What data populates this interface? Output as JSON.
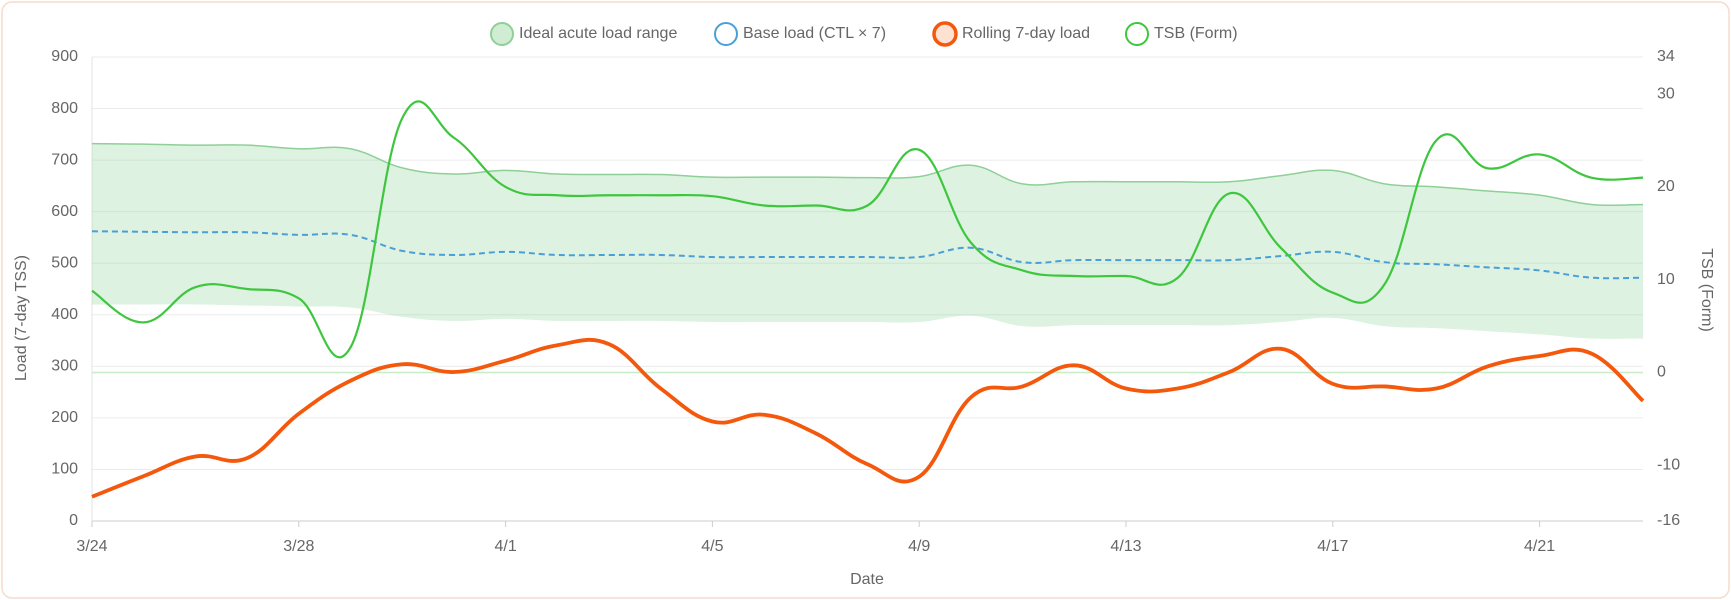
{
  "chart_data": {
    "type": "line",
    "x_label": "Date",
    "y_label": "Load (7-day TSS)",
    "y2_label": "TSB (Form)",
    "categories": [
      "3/24",
      null,
      null,
      null,
      "3/28",
      null,
      null,
      null,
      "4/1",
      null,
      null,
      null,
      "4/5",
      null,
      null,
      null,
      "4/9",
      null,
      null,
      null,
      "4/13",
      null,
      null,
      null,
      "4/17",
      null,
      null,
      null,
      "4/21",
      null,
      null
    ],
    "series": [
      {
        "name": "Ideal acute load range",
        "type": "range",
        "color": "#8fcf98",
        "upper": [
          732,
          731,
          729,
          729,
          722,
          722,
          685,
          673,
          680,
          673,
          672,
          672,
          667,
          667,
          667,
          666,
          668,
          690,
          654,
          658,
          658,
          658,
          658,
          670,
          680,
          654,
          648,
          640,
          632,
          614,
          614
        ],
        "lower": [
          420,
          420,
          420,
          418,
          416,
          414,
          396,
          388,
          392,
          388,
          388,
          388,
          386,
          386,
          386,
          386,
          386,
          398,
          378,
          380,
          380,
          380,
          380,
          386,
          394,
          378,
          374,
          368,
          362,
          354,
          354
        ]
      },
      {
        "name": "Base load (CTL × 7)",
        "type": "dashed",
        "color": "#4a9fd8",
        "values": [
          562,
          561,
          560,
          560,
          555,
          555,
          524,
          516,
          522,
          516,
          516,
          516,
          512,
          512,
          512,
          512,
          512,
          530,
          502,
          506,
          506,
          506,
          506,
          514,
          522,
          502,
          498,
          492,
          486,
          472,
          472
        ]
      },
      {
        "name": "Rolling 7-day load",
        "type": "line",
        "color": "#f4580c",
        "values": [
          47,
          87,
          125,
          122,
          208,
          272,
          304,
          289,
          311,
          341,
          343,
          257,
          193,
          206,
          170,
          110,
          86,
          240,
          261,
          302,
          257,
          257,
          289,
          334,
          266,
          261,
          257,
          300,
          320,
          325,
          233
        ]
      },
      {
        "name": "TSB (Form)",
        "type": "line",
        "color": "#3ec63e",
        "axis": "y2",
        "values": [
          8.8,
          5.4,
          9.2,
          9,
          8,
          2.7,
          27.4,
          25.3,
          20,
          19.1,
          19.1,
          19.1,
          19,
          18,
          18,
          18,
          24,
          14,
          11,
          10.4,
          10.4,
          10.2,
          19.3,
          13.4,
          8.6,
          9.5,
          25,
          22,
          23.5,
          21,
          21
        ]
      }
    ],
    "ylim": [
      0,
      900
    ],
    "yticks": [
      0,
      100,
      200,
      300,
      400,
      500,
      600,
      700,
      800,
      900
    ],
    "y2lim": [
      -16,
      34
    ],
    "y2ticks": [
      -16,
      -10,
      0,
      10,
      20,
      30,
      34
    ],
    "grid": true
  }
}
